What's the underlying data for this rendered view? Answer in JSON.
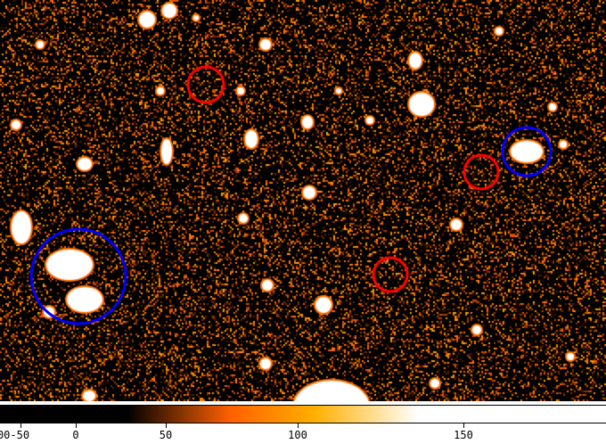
{
  "image_view": {
    "colormap": "heat",
    "background_color": "#000000"
  },
  "regions": [
    {
      "shape": "circle",
      "color": "#ff0000"
    },
    {
      "shape": "circle",
      "color": "#ff0000"
    },
    {
      "shape": "circle",
      "color": "#ff0000"
    },
    {
      "shape": "circle",
      "color": "#0000ff"
    },
    {
      "shape": "circle",
      "color": "#0000ff"
    }
  ],
  "colorbar": {
    "stops": [
      "#000000",
      "#ff6000",
      "#ffb000",
      "#ffffff"
    ],
    "ticks": [
      {
        "label": "00-50",
        "value": -50
      },
      {
        "label": "0",
        "value": 0
      },
      {
        "label": "50",
        "value": 50
      },
      {
        "label": "100",
        "value": 100
      },
      {
        "label": "150",
        "value": 150
      }
    ]
  }
}
